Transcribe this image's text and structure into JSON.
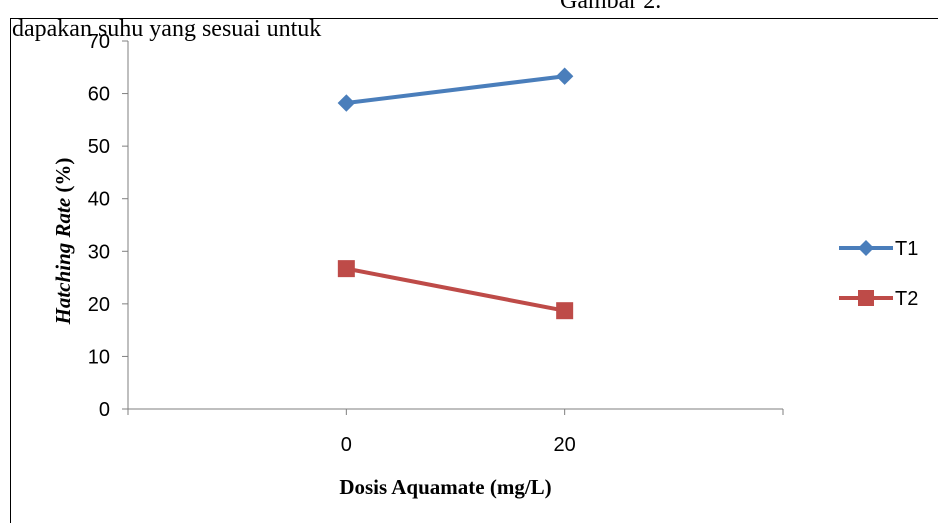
{
  "page_text": {
    "left": "dapakan suhu yang sesuai untuk",
    "right": "Gambar 2."
  },
  "chart_data": {
    "type": "line",
    "categories": [
      "0",
      "20"
    ],
    "series": [
      {
        "name": "T1",
        "values": [
          58.2,
          63.3
        ],
        "color": "#4a7ebb",
        "marker": "diamond"
      },
      {
        "name": "T2",
        "values": [
          26.7,
          18.7
        ],
        "color": "#be4b48",
        "marker": "square"
      }
    ],
    "ylim": [
      0,
      70
    ],
    "yticks": [
      "0",
      "10",
      "20",
      "30",
      "40",
      "50",
      "60",
      "70"
    ],
    "xlabel": "Dosis Aquamate (mg/L)",
    "ylabel_italic": "Hatching Rate",
    "ylabel_suffix": " (%)",
    "legend_position": "right",
    "grid": false
  }
}
